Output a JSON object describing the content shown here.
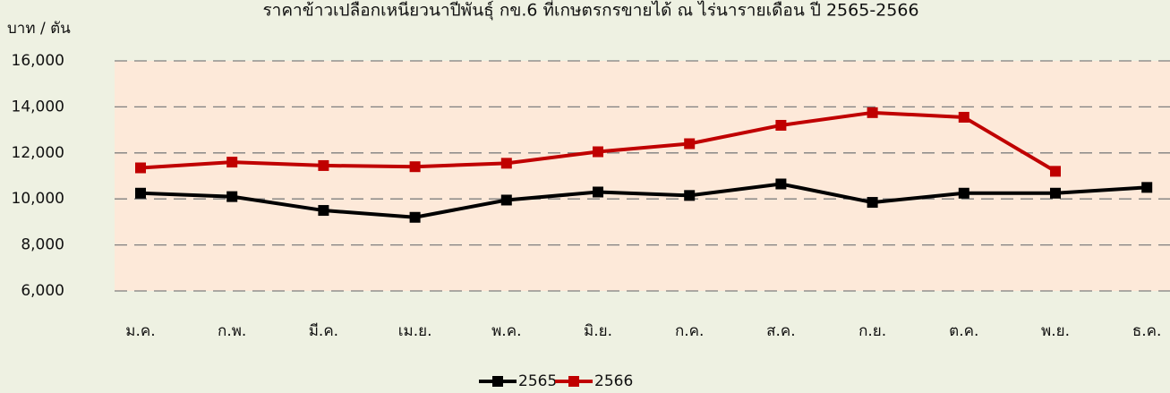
{
  "chart_data": {
    "type": "line",
    "title": "ราคาข้าวเปลือกเหนียวนาปีพันธุ์ กข.6 ที่เกษตรกรขายได้ ณ ไร่นารายเดือน ปี 2565-2566",
    "y_label": "บาท / ตัน",
    "categories": [
      "ม.ค.",
      "ก.พ.",
      "มี.ค.",
      "เม.ย.",
      "พ.ค.",
      "มิ.ย.",
      "ก.ค.",
      "ส.ค.",
      "ก.ย.",
      "ต.ค.",
      "พ.ย.",
      "ธ.ค."
    ],
    "series": [
      {
        "name": "2565",
        "color": "#000000",
        "values": [
          10250,
          10100,
          9500,
          9200,
          9950,
          10300,
          10150,
          10650,
          9850,
          10250,
          10250,
          10500
        ]
      },
      {
        "name": "2566",
        "color": "#c00000",
        "values": [
          11350,
          11600,
          11450,
          11400,
          11550,
          12050,
          12400,
          13200,
          13750,
          13550,
          11200,
          null
        ]
      }
    ],
    "ylim": [
      6000,
      16000
    ],
    "yticks": [
      {
        "value": 6000,
        "label": "6,000"
      },
      {
        "value": 8000,
        "label": "8,000"
      },
      {
        "value": 10000,
        "label": "10,000"
      },
      {
        "value": 12000,
        "label": "12,000"
      },
      {
        "value": 14000,
        "label": "14,000"
      },
      {
        "value": 16000,
        "label": "16,000"
      }
    ],
    "grid": true,
    "legend": "bottom"
  }
}
